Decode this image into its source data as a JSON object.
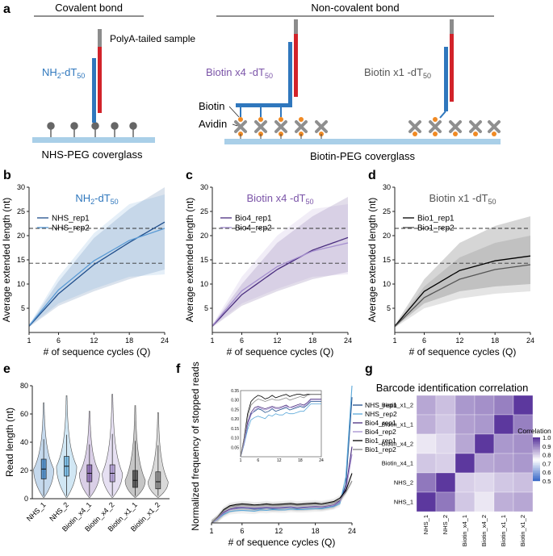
{
  "panel_letters": [
    "a",
    "b",
    "c",
    "d",
    "e",
    "f",
    "g"
  ],
  "panel_a": {
    "covalent_title": "Covalent bond",
    "noncovalent_title": "Non-covalent bond",
    "polya_label": "PolyA-tailed sample",
    "nh2_label": "NH2-dT50",
    "bio4_label": "Biotin x4 -dT50",
    "bio1_label": "Biotin x1 -dT50",
    "biotin_label": "Biotin",
    "avidin_label": "Avidin",
    "nhs_surface": "NHS-PEG coverglass",
    "biotin_surface": "Biotin-PEG coverglass"
  },
  "colors": {
    "nhs": "#2f77bd",
    "bio4": "#7b54a8",
    "bio1": "#222222",
    "red": "#d2232a",
    "gray": "#8c8c8c",
    "glass": "#a9cfe8",
    "avidin": "#8f8f8f",
    "biotin": "#f08a24"
  },
  "chart_data": [
    {
      "panel": "b",
      "type": "line",
      "title": "NH2-dT50",
      "xlabel": "# of sequence cycles (Q)",
      "ylabel": "Average extended length (nt)",
      "xlim": [
        1,
        24
      ],
      "ylim": [
        0,
        30
      ],
      "xticks": [
        1,
        6,
        12,
        18,
        24
      ],
      "yticks": [
        5,
        10,
        15,
        20,
        25,
        30
      ],
      "hlines": [
        14.3,
        21.5
      ],
      "series": [
        {
          "name": "NHS_rep1",
          "color": "#1f4e8c",
          "x": [
            1,
            6,
            12,
            18,
            24
          ],
          "y": [
            1.3,
            8.0,
            14.0,
            18.6,
            22.8
          ],
          "band": [
            [
              1.1,
              1.5
            ],
            [
              5.5,
              10.5
            ],
            [
              8.5,
              19.5
            ],
            [
              11.0,
              25.5
            ],
            [
              13.0,
              30.0
            ]
          ]
        },
        {
          "name": "NHS_rep2",
          "color": "#5b9bd5",
          "x": [
            1,
            6,
            12,
            18,
            24
          ],
          "y": [
            1.4,
            8.8,
            14.8,
            19.0,
            21.5
          ],
          "band": [
            [
              1.2,
              1.6
            ],
            [
              6.0,
              11.5
            ],
            [
              9.0,
              20.5
            ],
            [
              11.5,
              26.5
            ],
            [
              12.0,
              28.5
            ]
          ]
        }
      ]
    },
    {
      "panel": "c",
      "type": "line",
      "title": "Biotin x4 -dT50",
      "xlabel": "# of sequence cycles (Q)",
      "ylabel": "Average extended length (nt)",
      "xlim": [
        1,
        24
      ],
      "ylim": [
        0,
        30
      ],
      "xticks": [
        1,
        6,
        12,
        18,
        24
      ],
      "yticks": [
        5,
        10,
        15,
        20,
        25,
        30
      ],
      "hlines": [
        14.3,
        21.5
      ],
      "series": [
        {
          "name": "Bio4_rep1",
          "color": "#4a2d7f",
          "x": [
            1,
            6,
            12,
            18,
            24
          ],
          "y": [
            1.3,
            7.8,
            13.0,
            17.0,
            19.6
          ],
          "band": [
            [
              1.1,
              1.5
            ],
            [
              5.5,
              10.0
            ],
            [
              8.5,
              18.5
            ],
            [
              11.0,
              24.0
            ],
            [
              12.5,
              28.0
            ]
          ]
        },
        {
          "name": "Bio4_rep2",
          "color": "#a58fcf",
          "x": [
            1,
            6,
            12,
            18,
            24
          ],
          "y": [
            1.4,
            8.6,
            13.6,
            16.8,
            18.5
          ],
          "band": [
            [
              1.2,
              1.6
            ],
            [
              6.0,
              11.5
            ],
            [
              9.0,
              20.0
            ],
            [
              11.5,
              25.5
            ],
            [
              12.0,
              26.5
            ]
          ]
        }
      ]
    },
    {
      "panel": "d",
      "type": "line",
      "title": "Biotin x1 -dT50",
      "xlabel": "# of sequence cycles (Q)",
      "ylabel": "Average extended length (nt)",
      "xlim": [
        1,
        24
      ],
      "ylim": [
        0,
        30
      ],
      "xticks": [
        1,
        6,
        12,
        18,
        24
      ],
      "yticks": [
        5,
        10,
        15,
        20,
        25,
        30
      ],
      "hlines": [
        14.3,
        21.5
      ],
      "series": [
        {
          "name": "Bio1_rep1",
          "color": "#000000",
          "x": [
            1,
            6,
            12,
            18,
            24
          ],
          "y": [
            1.3,
            8.5,
            12.8,
            14.8,
            15.8
          ],
          "band": [
            [
              1.1,
              1.5
            ],
            [
              6.0,
              11.0
            ],
            [
              8.5,
              18.5
            ],
            [
              9.5,
              22.0
            ],
            [
              10.0,
              24.0
            ]
          ]
        },
        {
          "name": "Bio1_rep2",
          "color": "#555555",
          "x": [
            1,
            6,
            12,
            18,
            24
          ],
          "y": [
            1.2,
            7.2,
            11.0,
            13.0,
            14.0
          ],
          "band": [
            [
              1.0,
              1.4
            ],
            [
              5.0,
              9.5
            ],
            [
              7.0,
              15.5
            ],
            [
              8.0,
              18.5
            ],
            [
              8.5,
              20.0
            ]
          ]
        }
      ]
    },
    {
      "panel": "e",
      "type": "violin",
      "ylabel": "Read length (nt)",
      "ylim": [
        0,
        80
      ],
      "yticks": [
        0,
        20,
        40,
        60,
        80
      ],
      "categories": [
        "NHS_1",
        "NHS_2",
        "Biotin_x4_1",
        "Biotin_x4_2",
        "Biotin_x1_1",
        "Biotin_x1_2"
      ],
      "colors": [
        "#2f77bd",
        "#5ba8d9",
        "#7b54a8",
        "#a58fcf",
        "#333333",
        "#777777"
      ],
      "median": [
        21,
        23,
        18,
        18,
        13,
        12
      ],
      "q1": [
        14,
        16,
        12,
        12,
        8,
        7
      ],
      "q3": [
        28,
        30,
        24,
        24,
        20,
        19
      ],
      "max": [
        68,
        73,
        62,
        74,
        66,
        61
      ]
    },
    {
      "panel": "f",
      "type": "line",
      "ylabel": "Normalized frequency of stopped reads",
      "xlabel": "# of sequence cycles (Q)",
      "xlim": [
        1,
        24
      ],
      "ylim": [
        0,
        0.36
      ],
      "xticks": [
        1,
        6,
        12,
        18,
        24
      ],
      "x": [
        1,
        2,
        3,
        4,
        5,
        6,
        7,
        8,
        9,
        10,
        11,
        12,
        13,
        14,
        15,
        16,
        17,
        18,
        19,
        20,
        21,
        22,
        23,
        24
      ],
      "series": [
        {
          "name": "NHS_rep1",
          "color": "#1f4e8c",
          "values": [
            0.0,
            0.01,
            0.025,
            0.035,
            0.037,
            0.039,
            0.038,
            0.036,
            0.037,
            0.039,
            0.037,
            0.038,
            0.039,
            0.04,
            0.038,
            0.039,
            0.04,
            0.041,
            0.04,
            0.042,
            0.045,
            0.055,
            0.1,
            0.33
          ]
        },
        {
          "name": "NHS_rep2",
          "color": "#5ba8d9",
          "values": [
            0.0,
            0.01,
            0.022,
            0.03,
            0.032,
            0.033,
            0.032,
            0.031,
            0.034,
            0.033,
            0.035,
            0.034,
            0.034,
            0.036,
            0.035,
            0.035,
            0.036,
            0.037,
            0.037,
            0.04,
            0.043,
            0.05,
            0.12,
            0.36
          ]
        },
        {
          "name": "Bio4_rep1",
          "color": "#4a2d7f",
          "values": [
            0.0,
            0.012,
            0.028,
            0.036,
            0.04,
            0.041,
            0.04,
            0.039,
            0.04,
            0.041,
            0.04,
            0.04,
            0.041,
            0.042,
            0.04,
            0.041,
            0.042,
            0.043,
            0.042,
            0.044,
            0.047,
            0.058,
            0.09,
            0.2
          ]
        },
        {
          "name": "Bio4_rep2",
          "color": "#a58fcf",
          "values": [
            0.0,
            0.011,
            0.026,
            0.034,
            0.038,
            0.04,
            0.039,
            0.038,
            0.039,
            0.04,
            0.039,
            0.039,
            0.04,
            0.041,
            0.04,
            0.04,
            0.041,
            0.042,
            0.041,
            0.043,
            0.046,
            0.056,
            0.085,
            0.18
          ]
        },
        {
          "name": "Bio1_rep1",
          "color": "#000000",
          "values": [
            0.0,
            0.015,
            0.035,
            0.045,
            0.048,
            0.05,
            0.049,
            0.047,
            0.048,
            0.05,
            0.048,
            0.049,
            0.05,
            0.051,
            0.049,
            0.05,
            0.051,
            0.052,
            0.05,
            0.053,
            0.056,
            0.065,
            0.085,
            0.13
          ]
        },
        {
          "name": "Bio1_rep2",
          "color": "#888888",
          "values": [
            0.0,
            0.014,
            0.032,
            0.042,
            0.045,
            0.047,
            0.046,
            0.045,
            0.046,
            0.047,
            0.046,
            0.046,
            0.047,
            0.048,
            0.046,
            0.047,
            0.048,
            0.049,
            0.048,
            0.05,
            0.053,
            0.06,
            0.08,
            0.11
          ]
        }
      ],
      "inset": {
        "xlim": [
          1,
          24
        ],
        "ylim": [
          0,
          0.35
        ],
        "xticks": [
          1,
          6,
          12,
          18,
          24
        ],
        "yticks": [
          0.05,
          0.1,
          0.15,
          0.2,
          0.25,
          0.3,
          0.35
        ],
        "ytick_labels": [
          "0.05",
          "0.10",
          "0.15",
          "0.20",
          "0.25",
          "0.30",
          "0.35"
        ]
      }
    },
    {
      "panel": "g",
      "type": "heatmap",
      "title": "Barcode identification correlation",
      "rows": [
        "Biotin_x1_2",
        "Biotin_x1_1",
        "Biotin_x4_2",
        "Biotin_x4_1",
        "NHS_2",
        "NHS_1"
      ],
      "cols": [
        "NHS_1",
        "NHS_2",
        "Biotin_x4_1",
        "Biotin_x4_2",
        "Biotin_x1_1",
        "Biotin_x1_2"
      ],
      "values": [
        [
          0.86,
          0.83,
          0.88,
          0.89,
          0.91,
          1.0
        ],
        [
          0.85,
          0.82,
          0.87,
          0.88,
          1.0,
          0.91
        ],
        [
          0.78,
          0.8,
          0.86,
          1.0,
          0.88,
          0.89
        ],
        [
          0.82,
          0.81,
          1.0,
          0.86,
          0.87,
          0.88
        ],
        [
          0.92,
          1.0,
          0.81,
          0.8,
          0.82,
          0.83
        ],
        [
          1.0,
          0.92,
          0.82,
          0.78,
          0.85,
          0.86
        ]
      ],
      "legend_title": "Correlation",
      "legend_ticks": [
        1.0,
        0.9,
        0.8,
        0.7,
        0.6,
        0.5
      ],
      "legend_tick_labels": [
        "1.0",
        "0.9",
        "0.8",
        "0.7",
        "0.6",
        "0.5"
      ]
    }
  ]
}
